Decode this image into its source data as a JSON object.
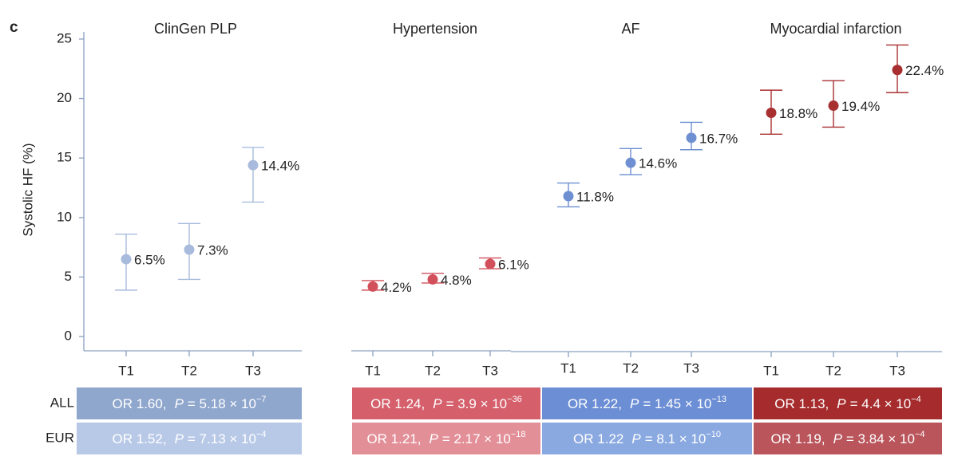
{
  "chart_data": {
    "type": "errorbar",
    "panel_label": "c",
    "ylabel": "Systolic HF (%)",
    "ylim": [
      -1.2,
      25.6
    ],
    "yticks": [
      0,
      5,
      10,
      15,
      20,
      25
    ],
    "groups": [
      {
        "title": "ClinGen PLP",
        "color": "#a9bbdd",
        "categories": [
          "T1",
          "T2",
          "T3"
        ],
        "values": [
          6.5,
          7.3,
          14.4
        ],
        "value_labels": [
          "6.5%",
          "7.3%",
          "14.4%"
        ],
        "lower": [
          3.9,
          4.8,
          11.3
        ],
        "upper": [
          8.6,
          9.5,
          15.9
        ]
      },
      {
        "title": "Hypertension",
        "color": "#d2505b",
        "categories": [
          "T1",
          "T2",
          "T3"
        ],
        "values": [
          4.2,
          4.8,
          6.1
        ],
        "value_labels": [
          "4.2%",
          "4.8%",
          "6.1%"
        ],
        "lower": [
          3.9,
          4.5,
          5.7
        ],
        "upper": [
          4.7,
          5.3,
          6.6
        ]
      },
      {
        "title": "AF",
        "color": "#6e8fd2",
        "categories": [
          "T1",
          "T2",
          "T3"
        ],
        "values": [
          11.8,
          14.6,
          16.7
        ],
        "value_labels": [
          "11.8%",
          "14.6%",
          "16.7%"
        ],
        "lower": [
          10.9,
          13.6,
          15.7
        ],
        "upper": [
          12.9,
          15.8,
          18.0
        ]
      },
      {
        "title": "Myocardial infarction",
        "color": "#a82f30",
        "categories": [
          "T1",
          "T2",
          "T3"
        ],
        "values": [
          18.8,
          19.4,
          22.4
        ],
        "value_labels": [
          "18.8%",
          "19.4%",
          "22.4%"
        ],
        "lower": [
          17.0,
          17.6,
          20.5
        ],
        "upper": [
          20.7,
          21.5,
          24.5
        ]
      }
    ]
  },
  "table": {
    "row_labels": [
      "ALL",
      "EUR"
    ],
    "columns": [
      {
        "cells": [
          {
            "color": "#8fa6cd",
            "or": "OR 1.60,",
            "p": "P",
            "mantissa": "= 5.18 × 10",
            "exponent": "−7"
          },
          {
            "color": "#b8c9e7",
            "or": "OR 1.52,",
            "p": "P",
            "mantissa": "= 7.13 × 10",
            "exponent": "−4"
          }
        ]
      },
      {
        "cells": [
          {
            "color": "#d5606c",
            "or": "OR 1.24,",
            "p": "P",
            "mantissa": "= 3.9 × 10",
            "exponent": "−36"
          },
          {
            "color": "#e38f98",
            "or": "OR 1.21,",
            "p": "P",
            "mantissa": "= 2.17 × 10",
            "exponent": "−18"
          }
        ]
      },
      {
        "cells": [
          {
            "color": "#6c8ed5",
            "or": "OR 1.22,",
            "p": "P",
            "mantissa": "= 1.45 × 10",
            "exponent": "−13"
          },
          {
            "color": "#8aa9e1",
            "or": "OR 1.22",
            "p": "P",
            "mantissa": "= 8.1 × 10",
            "exponent": "−10"
          }
        ]
      },
      {
        "cells": [
          {
            "color": "#a62b2c",
            "or": "OR 1.13,",
            "p": "P",
            "mantissa": "= 4.4 × 10",
            "exponent": "−4"
          },
          {
            "color": "#b9555b",
            "or": "OR 1.19,",
            "p": "P",
            "mantissa": "= 3.84 × 10",
            "exponent": "−4"
          }
        ]
      }
    ]
  }
}
